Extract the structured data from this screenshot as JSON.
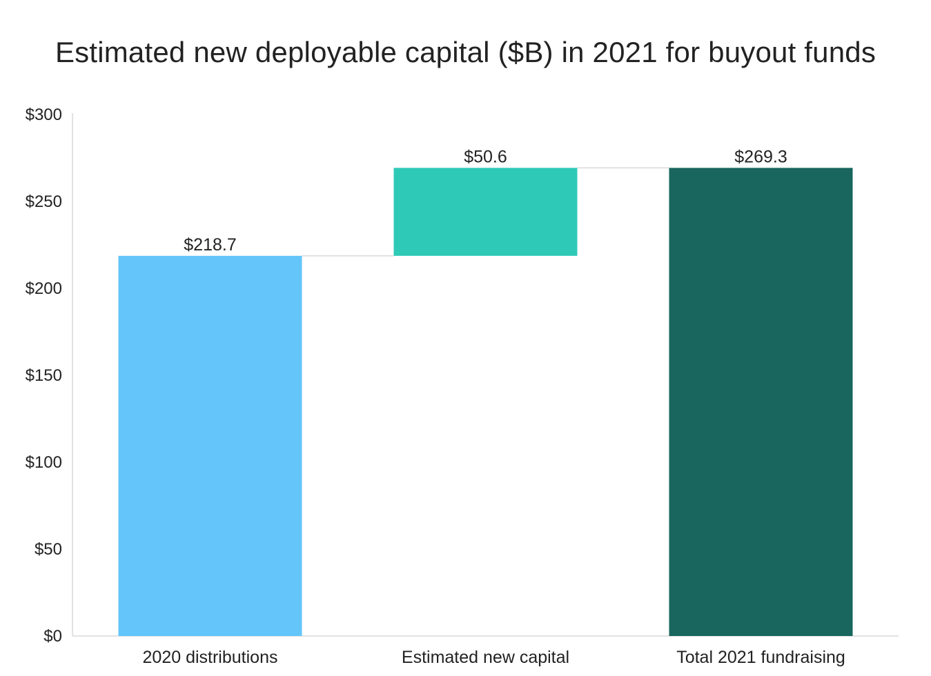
{
  "chart_data": {
    "type": "bar",
    "subtype": "waterfall",
    "title": "Estimated new deployable capital ($B) in 2021 for buyout funds",
    "xlabel": "",
    "ylabel": "",
    "ylim": [
      0,
      300
    ],
    "yticks": [
      0,
      50,
      100,
      150,
      200,
      250,
      300
    ],
    "ytick_labels": [
      "$0",
      "$50",
      "$100",
      "$150",
      "$200",
      "$250",
      "$300"
    ],
    "categories": [
      "2020 distributions",
      "Estimated new capital",
      "Total 2021 fundraising"
    ],
    "values": [
      218.7,
      50.6,
      269.3
    ],
    "bases": [
      0,
      218.7,
      0
    ],
    "data_labels": [
      "$218.7",
      "$50.6",
      "$269.3"
    ],
    "colors": [
      "#63C5FA",
      "#2FC9B7",
      "#18665D"
    ],
    "connector_color": "#D9D9D9",
    "axis_color": "#D9D9D9",
    "grid": false,
    "legend": "none"
  }
}
